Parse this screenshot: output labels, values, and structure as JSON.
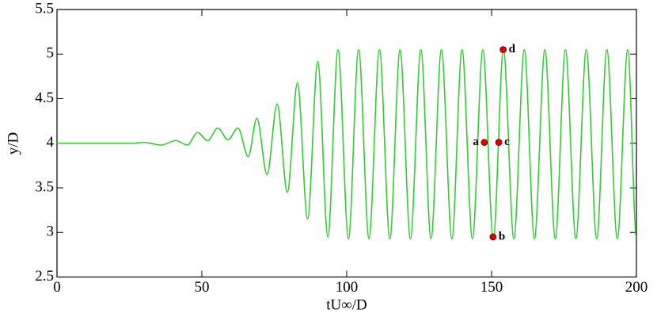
{
  "chart_data": {
    "type": "line",
    "xlabel": "tU∞/D",
    "ylabel": "y/D",
    "xlim": [
      0,
      200
    ],
    "ylim": [
      2.5,
      5.5
    ],
    "xticks": [
      0,
      50,
      100,
      150,
      200
    ],
    "yticks": [
      2.5,
      3,
      3.5,
      4,
      4.5,
      5,
      5.5
    ],
    "series": [
      {
        "color": "#33cc33",
        "x": [
          0,
          26,
          30,
          36,
          41,
          45,
          48.5,
          52,
          55.5,
          59,
          62.5,
          66,
          69,
          72.5,
          76,
          79.5,
          83,
          86.5,
          90,
          93.5,
          97,
          100.6,
          104.1,
          107.7,
          111.3,
          114.9,
          118.4,
          122,
          125.6,
          129.1,
          132.7,
          136.3,
          139.8,
          143.4,
          147,
          150.6,
          154.1,
          157.7,
          161.3,
          164.8,
          168.4,
          172,
          175.5,
          179.1,
          182.7,
          186.3,
          189.8,
          193.4,
          197,
          200
        ],
        "values": [
          4,
          4,
          4.01,
          3.98,
          4.03,
          3.98,
          4.12,
          4.03,
          4.17,
          4.04,
          4.17,
          3.85,
          4.28,
          3.65,
          4.44,
          3.45,
          4.68,
          3.15,
          4.92,
          2.95,
          5.05,
          2.93,
          5.05,
          2.93,
          5.05,
          2.93,
          5.05,
          2.93,
          5.05,
          2.93,
          5.05,
          2.93,
          5.05,
          2.93,
          5.05,
          2.93,
          5.05,
          2.93,
          5.05,
          2.93,
          5.05,
          2.93,
          5.05,
          2.93,
          5.05,
          2.93,
          5.05,
          2.93,
          5.05,
          2.95
        ]
      }
    ],
    "points": [
      {
        "label": "a",
        "x": 147.5,
        "y": 4.01,
        "color": "#dd0000",
        "side": "left"
      },
      {
        "label": "b",
        "x": 150.5,
        "y": 2.95,
        "color": "#dd0000",
        "side": "right"
      },
      {
        "label": "c",
        "x": 152.5,
        "y": 4.01,
        "color": "#dd0000",
        "side": "right"
      },
      {
        "label": "d",
        "x": 154,
        "y": 5.05,
        "color": "#dd0000",
        "side": "right"
      }
    ]
  }
}
